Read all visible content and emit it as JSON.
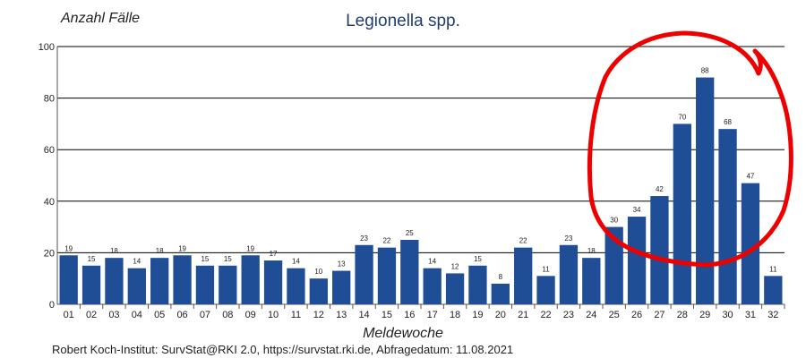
{
  "colors": {
    "bar": "#1f4e96",
    "grid": "#000000",
    "highlight": "#ee0000"
  },
  "chart_data": {
    "type": "bar",
    "title": "Legionella spp.",
    "ylabel": "Anzahl Fälle",
    "xlabel": "Meldewoche",
    "ylim": [
      0,
      100
    ],
    "yticks": [
      0,
      20,
      40,
      60,
      80,
      100
    ],
    "grid": true,
    "categories": [
      "01",
      "02",
      "03",
      "04",
      "05",
      "06",
      "07",
      "08",
      "09",
      "10",
      "11",
      "12",
      "13",
      "14",
      "15",
      "16",
      "17",
      "18",
      "19",
      "20",
      "21",
      "22",
      "23",
      "24",
      "25",
      "26",
      "27",
      "28",
      "29",
      "30",
      "31",
      "32"
    ],
    "values": [
      19,
      15,
      18,
      14,
      18,
      19,
      15,
      15,
      19,
      17,
      14,
      10,
      13,
      23,
      22,
      25,
      14,
      12,
      15,
      8,
      22,
      11,
      23,
      18,
      30,
      34,
      42,
      70,
      88,
      68,
      47,
      11
    ],
    "source": "Robert Koch-Institut: SurvStat@RKI 2.0, https://survstat.rki.de, Abfragedatum: 11.08.2021"
  }
}
